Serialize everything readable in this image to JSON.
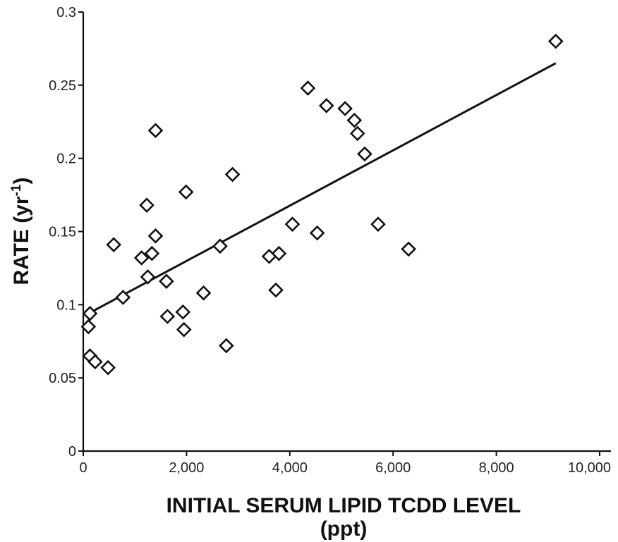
{
  "chart_data": {
    "type": "scatter",
    "xlabel": "INITIAL SERUM LIPID TCDD LEVEL",
    "xlabel_unit": "(ppt)",
    "ylabel_main": "RATE (yr",
    "ylabel_sup": "-1",
    "ylabel_close": ")",
    "xlim": [
      0,
      10000
    ],
    "ylim": [
      0,
      0.3
    ],
    "xticks": [
      "0",
      "2,000",
      "4,000",
      "6,000",
      "8,000",
      "10,000"
    ],
    "xtick_values": [
      0,
      2000,
      4000,
      6000,
      8000,
      10000
    ],
    "yticks": [
      "0",
      "0.05",
      "0.1",
      "0.15",
      "0.2",
      "0.25",
      "0.3"
    ],
    "ytick_values": [
      0,
      0.05,
      0.1,
      0.15,
      0.2,
      0.25,
      0.3
    ],
    "grid": false,
    "marker": "open-diamond",
    "points": [
      {
        "x": 100,
        "y": 0.085
      },
      {
        "x": 130,
        "y": 0.094
      },
      {
        "x": 130,
        "y": 0.065
      },
      {
        "x": 230,
        "y": 0.061
      },
      {
        "x": 480,
        "y": 0.057
      },
      {
        "x": 590,
        "y": 0.141
      },
      {
        "x": 770,
        "y": 0.105
      },
      {
        "x": 1130,
        "y": 0.132
      },
      {
        "x": 1230,
        "y": 0.168
      },
      {
        "x": 1250,
        "y": 0.119
      },
      {
        "x": 1330,
        "y": 0.135
      },
      {
        "x": 1400,
        "y": 0.147
      },
      {
        "x": 1400,
        "y": 0.219
      },
      {
        "x": 1610,
        "y": 0.116
      },
      {
        "x": 1630,
        "y": 0.092
      },
      {
        "x": 1930,
        "y": 0.095
      },
      {
        "x": 1950,
        "y": 0.083
      },
      {
        "x": 1990,
        "y": 0.177
      },
      {
        "x": 2330,
        "y": 0.108
      },
      {
        "x": 2650,
        "y": 0.14
      },
      {
        "x": 2770,
        "y": 0.072
      },
      {
        "x": 2890,
        "y": 0.189
      },
      {
        "x": 3600,
        "y": 0.133
      },
      {
        "x": 3730,
        "y": 0.11
      },
      {
        "x": 3790,
        "y": 0.135
      },
      {
        "x": 4050,
        "y": 0.155
      },
      {
        "x": 4350,
        "y": 0.248
      },
      {
        "x": 4530,
        "y": 0.149
      },
      {
        "x": 4710,
        "y": 0.236
      },
      {
        "x": 5070,
        "y": 0.234
      },
      {
        "x": 5250,
        "y": 0.226
      },
      {
        "x": 5310,
        "y": 0.217
      },
      {
        "x": 5450,
        "y": 0.203
      },
      {
        "x": 5710,
        "y": 0.155
      },
      {
        "x": 6300,
        "y": 0.138
      },
      {
        "x": 9150,
        "y": 0.28
      }
    ],
    "trendline": {
      "x": [
        100,
        9150
      ],
      "y": [
        0.094,
        0.265
      ]
    }
  }
}
